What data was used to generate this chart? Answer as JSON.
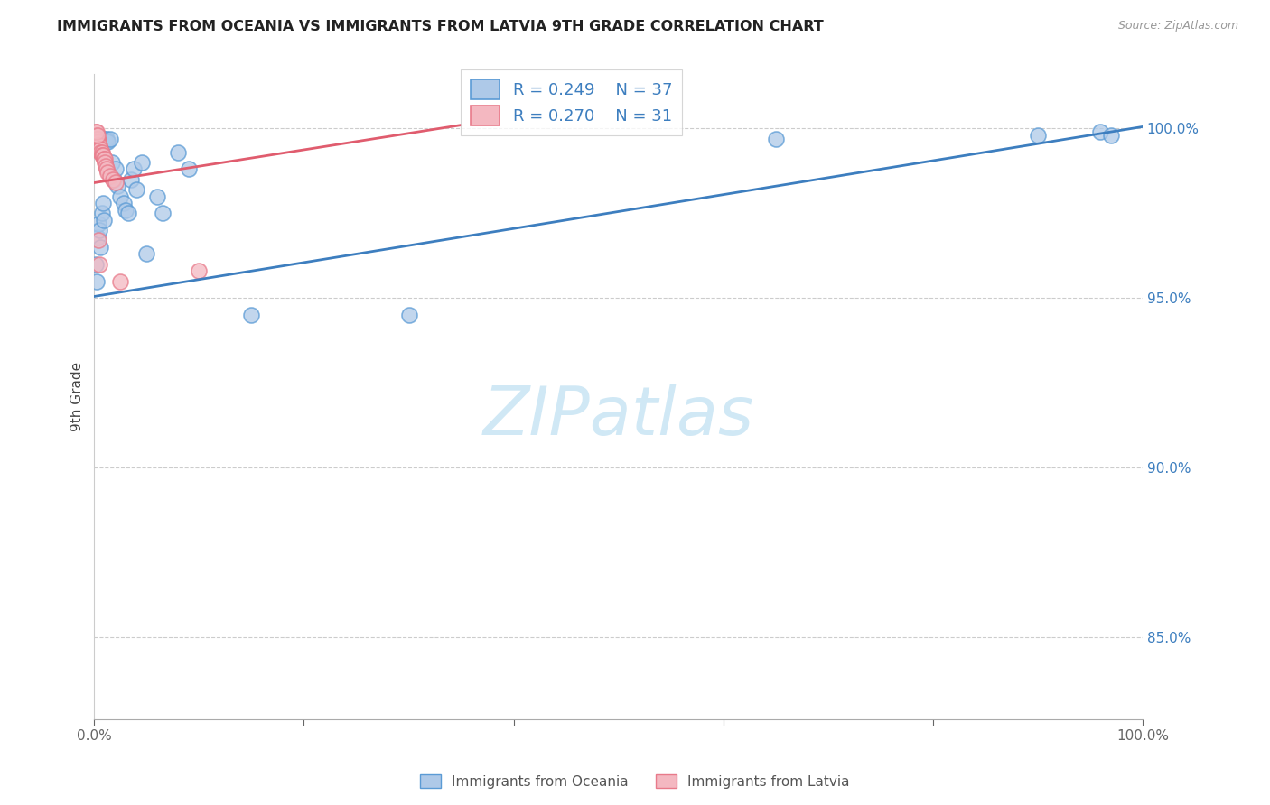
{
  "title": "IMMIGRANTS FROM OCEANIA VS IMMIGRANTS FROM LATVIA 9TH GRADE CORRELATION CHART",
  "source": "Source: ZipAtlas.com",
  "ylabel": "9th Grade",
  "y_tick_values": [
    0.85,
    0.9,
    0.95,
    1.0
  ],
  "y_tick_labels": [
    "85.0%",
    "90.0%",
    "95.0%",
    "100.0%"
  ],
  "x_lim": [
    0.0,
    1.0
  ],
  "y_lim": [
    0.826,
    1.016
  ],
  "legend_r_oceania": "R = 0.249",
  "legend_n_oceania": "N = 37",
  "legend_r_latvia": "R = 0.270",
  "legend_n_latvia": "N = 31",
  "legend_label_oceania": "Immigrants from Oceania",
  "legend_label_latvia": "Immigrants from Latvia",
  "blue_color": "#aec9e8",
  "blue_edge_color": "#5b9bd5",
  "blue_line_color": "#3d7ebf",
  "pink_color": "#f4b8c1",
  "pink_edge_color": "#e87a8a",
  "pink_line_color": "#e05c6e",
  "watermark_color": "#d0e8f5",
  "oceania_x": [
    0.001,
    0.002,
    0.003,
    0.004,
    0.005,
    0.006,
    0.007,
    0.008,
    0.009,
    0.01,
    0.011,
    0.012,
    0.013,
    0.015,
    0.017,
    0.019,
    0.02,
    0.022,
    0.025,
    0.028,
    0.03,
    0.032,
    0.035,
    0.038,
    0.04,
    0.045,
    0.05,
    0.06,
    0.065,
    0.08,
    0.09,
    0.15,
    0.3,
    0.65,
    0.9,
    0.96,
    0.97
  ],
  "oceania_y": [
    0.96,
    0.955,
    0.968,
    0.972,
    0.97,
    0.965,
    0.975,
    0.978,
    0.973,
    0.997,
    0.996,
    0.997,
    0.996,
    0.997,
    0.99,
    0.985,
    0.988,
    0.983,
    0.98,
    0.978,
    0.976,
    0.975,
    0.985,
    0.988,
    0.982,
    0.99,
    0.963,
    0.98,
    0.975,
    0.993,
    0.988,
    0.945,
    0.945,
    0.997,
    0.998,
    0.999,
    0.998
  ],
  "latvia_x": [
    0.001,
    0.001,
    0.002,
    0.002,
    0.003,
    0.003,
    0.003,
    0.004,
    0.004,
    0.005,
    0.005,
    0.006,
    0.006,
    0.007,
    0.007,
    0.008,
    0.009,
    0.01,
    0.01,
    0.011,
    0.012,
    0.013,
    0.015,
    0.018,
    0.02,
    0.002,
    0.003,
    0.004,
    0.005,
    0.025,
    0.1
  ],
  "latvia_y": [
    0.999,
    0.998,
    0.998,
    0.997,
    0.997,
    0.997,
    0.996,
    0.996,
    0.995,
    0.995,
    0.994,
    0.994,
    0.993,
    0.993,
    0.992,
    0.992,
    0.991,
    0.991,
    0.99,
    0.989,
    0.988,
    0.987,
    0.986,
    0.985,
    0.984,
    0.999,
    0.998,
    0.967,
    0.96,
    0.955,
    0.958
  ],
  "blue_line_x0": 0.0,
  "blue_line_y0": 0.9505,
  "blue_line_x1": 1.0,
  "blue_line_y1": 1.0005,
  "pink_line_x0": 0.0,
  "pink_line_y0": 0.984,
  "pink_line_x1": 0.35,
  "pink_line_y1": 1.001
}
